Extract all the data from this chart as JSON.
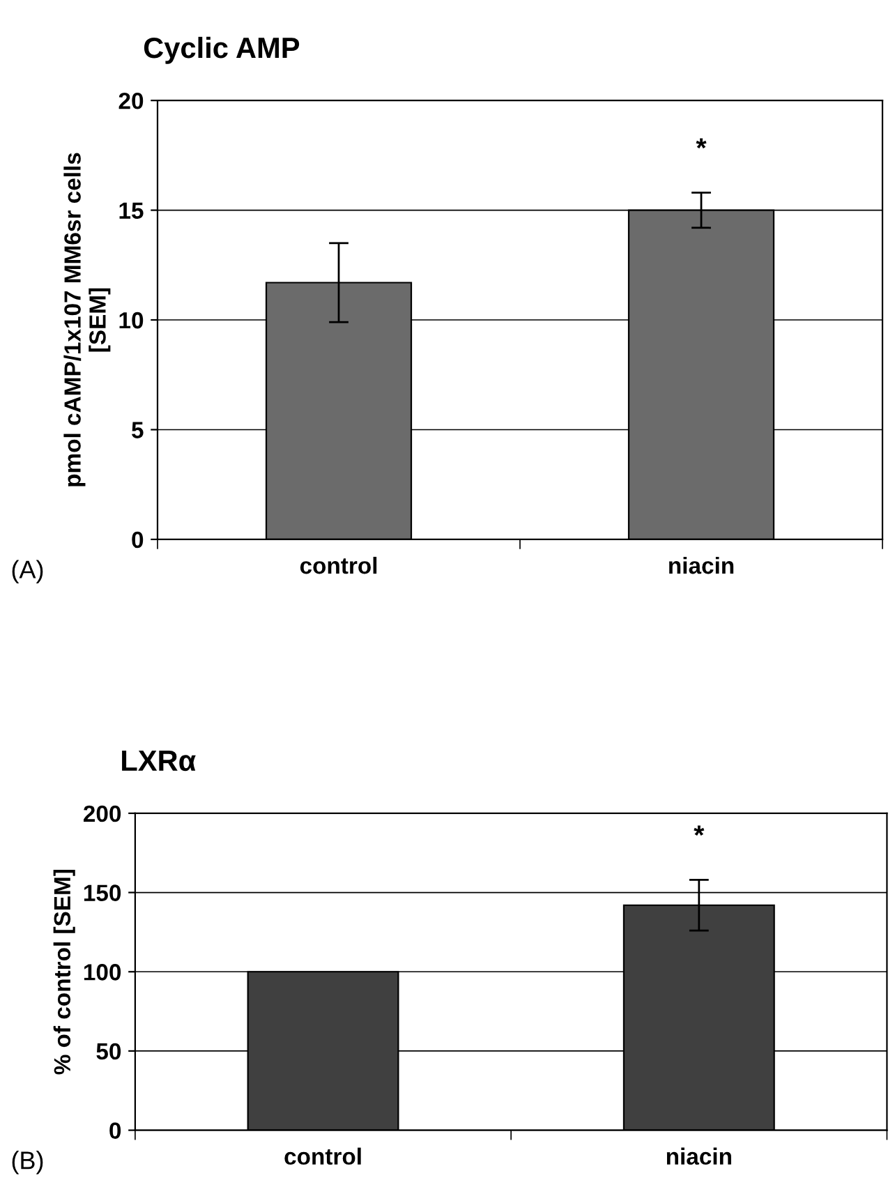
{
  "chart_data": [
    {
      "type": "bar",
      "title": "Cyclic AMP",
      "ylabel": "pmol cAMP/1x107 MM6sr cells\n[SEM]",
      "categories": [
        "control",
        "niacin"
      ],
      "values": [
        11.7,
        15
      ],
      "errors": [
        1.8,
        0.8
      ],
      "color": "#6b6b6b",
      "ylim": [
        0,
        20
      ],
      "yticks": [
        0,
        5,
        10,
        15,
        20
      ],
      "grid": "y",
      "annotations": [
        "(A)",
        "*"
      ]
    },
    {
      "type": "bar",
      "title": "LXRα",
      "ylabel": "% of control [SEM]",
      "categories": [
        "control",
        "niacin"
      ],
      "values": [
        100,
        142
      ],
      "errors": [
        null,
        16
      ],
      "color": "#404040",
      "ylim": [
        0,
        200
      ],
      "yticks": [
        0,
        50,
        100,
        150,
        200
      ],
      "grid": "y",
      "annotations": [
        "(B)",
        "*"
      ]
    }
  ]
}
